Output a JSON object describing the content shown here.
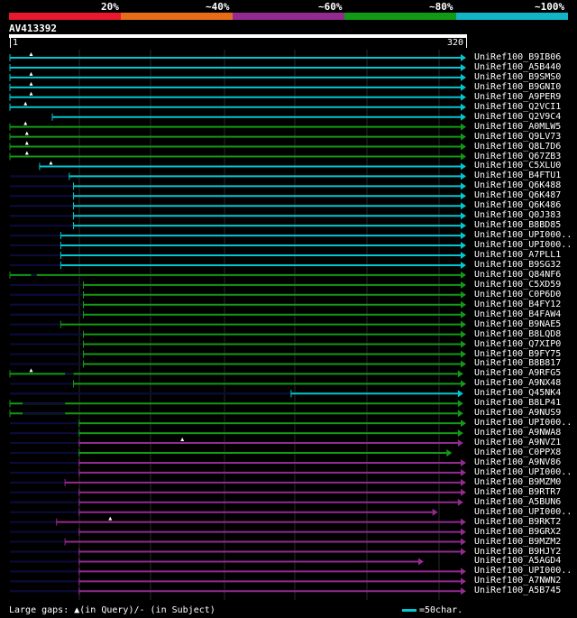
{
  "legend": [
    {
      "label": "20%",
      "color": "#e8192c"
    },
    {
      "label": "~40%",
      "color": "#e66c1a"
    },
    {
      "label": "~60%",
      "color": "#922a8f"
    },
    {
      "label": "~80%",
      "color": "#129a16"
    },
    {
      "label": "~100%",
      "color": "#11b5c6"
    }
  ],
  "query": {
    "name": "AV413392",
    "start": "1",
    "end": "320",
    "length": 320
  },
  "footer": {
    "gaps_text": "Large gaps: ▲(in Query)/- (in Subject)",
    "scale_text": "=50char."
  },
  "colors": {
    "cyan": "#00c8d2",
    "green": "#129a16",
    "purple": "#922a8f",
    "dark": "#0b0b3a",
    "gap_marker": "#ffffff"
  },
  "hits": [
    {
      "name": "UniRef100_B9IB06",
      "color": "cyan",
      "start": 1,
      "end": 320,
      "gap_q": 16
    },
    {
      "name": "UniRef100_A5B440",
      "color": "cyan",
      "start": 1,
      "end": 320
    },
    {
      "name": "UniRef100_B9SMS0",
      "color": "cyan",
      "start": 1,
      "end": 320,
      "gap_q": 16
    },
    {
      "name": "UniRef100_B9GNI0",
      "color": "cyan",
      "start": 1,
      "end": 320,
      "gap_q": 16
    },
    {
      "name": "UniRef100_A9PER9",
      "color": "cyan",
      "start": 1,
      "end": 320,
      "gap_q": 16
    },
    {
      "name": "UniRef100_Q2VCI1",
      "color": "cyan",
      "start": 1,
      "end": 320,
      "gap_q": 12
    },
    {
      "name": "UniRef100_Q2V9C4",
      "color": "cyan",
      "start": 31,
      "end": 320
    },
    {
      "name": "UniRef100_A0MLW5",
      "color": "green",
      "start": 1,
      "end": 320,
      "gap_q": 12
    },
    {
      "name": "UniRef100_Q9LV73",
      "color": "green",
      "start": 1,
      "end": 320,
      "gap_q": 13
    },
    {
      "name": "UniRef100_Q8L7D6",
      "color": "green",
      "start": 1,
      "end": 320,
      "gap_q": 13
    },
    {
      "name": "UniRef100_Q67ZB3",
      "color": "green",
      "start": 1,
      "end": 320,
      "gap_q": 13
    },
    {
      "name": "UniRef100_C5XLU0",
      "color": "cyan",
      "start": 22,
      "end": 320,
      "gap_q": 30
    },
    {
      "name": "UniRef100_B4FTU1",
      "color": "cyan",
      "start": 43,
      "end": 320,
      "dark": [
        1,
        43
      ]
    },
    {
      "name": "UniRef100_Q6K488",
      "color": "cyan",
      "start": 46,
      "end": 320,
      "dark": [
        1,
        46
      ]
    },
    {
      "name": "UniRef100_Q6K487",
      "color": "cyan",
      "start": 46,
      "end": 320,
      "dark": [
        1,
        46
      ]
    },
    {
      "name": "UniRef100_Q6K486",
      "color": "cyan",
      "start": 46,
      "end": 320,
      "dark": [
        1,
        46
      ]
    },
    {
      "name": "UniRef100_Q0J383",
      "color": "cyan",
      "start": 46,
      "end": 320,
      "dark": [
        1,
        46
      ]
    },
    {
      "name": "UniRef100_B8BD85",
      "color": "cyan",
      "start": 46,
      "end": 320,
      "dark": [
        1,
        46
      ]
    },
    {
      "name": "UniRef100_UPI000..",
      "color": "cyan",
      "start": 37,
      "end": 320,
      "dark": [
        1,
        37
      ]
    },
    {
      "name": "UniRef100_UPI000..",
      "color": "cyan",
      "start": 37,
      "end": 320,
      "dark": [
        1,
        37
      ]
    },
    {
      "name": "UniRef100_A7PLL1",
      "color": "cyan",
      "start": 37,
      "end": 320,
      "dark": [
        1,
        37
      ]
    },
    {
      "name": "UniRef100_B9SG32",
      "color": "cyan",
      "start": 37,
      "end": 320,
      "dark": [
        1,
        37
      ]
    },
    {
      "name": "UniRef100_Q84NF6",
      "color": "green",
      "start": 1,
      "end": 320,
      "dark": [
        16,
        20
      ]
    },
    {
      "name": "UniRef100_C5XD59",
      "color": "green",
      "start": 53,
      "end": 320,
      "dark": [
        1,
        53
      ]
    },
    {
      "name": "UniRef100_C0P6D0",
      "color": "green",
      "start": 53,
      "end": 320,
      "dark": [
        1,
        53
      ]
    },
    {
      "name": "UniRef100_B4FY12",
      "color": "green",
      "start": 53,
      "end": 320,
      "dark": [
        1,
        53
      ]
    },
    {
      "name": "UniRef100_B4FAW4",
      "color": "green",
      "start": 53,
      "end": 320,
      "dark": [
        1,
        53
      ]
    },
    {
      "name": "UniRef100_B9NAE5",
      "color": "green",
      "start": 37,
      "end": 320,
      "dark": [
        1,
        37
      ]
    },
    {
      "name": "UniRef100_B8LQD8",
      "color": "green",
      "start": 53,
      "end": 320,
      "dark": [
        1,
        53
      ]
    },
    {
      "name": "UniRef100_Q7XIP0",
      "color": "green",
      "start": 53,
      "end": 320,
      "dark": [
        1,
        53
      ]
    },
    {
      "name": "UniRef100_B9FY75",
      "color": "green",
      "start": 53,
      "end": 320,
      "dark": [
        1,
        53
      ]
    },
    {
      "name": "UniRef100_B8B817",
      "color": "green",
      "start": 53,
      "end": 320,
      "dark": [
        1,
        53
      ]
    },
    {
      "name": "UniRef100_A9RFG5",
      "color": "green",
      "start": 1,
      "end": 318,
      "gap_q": 16,
      "dark": [
        40,
        46
      ]
    },
    {
      "name": "UniRef100_A9NX48",
      "color": "green",
      "start": 46,
      "end": 320,
      "dark": [
        1,
        46
      ]
    },
    {
      "name": "UniRef100_Q45NK4",
      "color": "cyan",
      "start": 200,
      "end": 318,
      "dark": [
        1,
        200
      ]
    },
    {
      "name": "UniRef100_B8LP41",
      "color": "green",
      "start": 1,
      "end": 318,
      "dark": [
        10,
        40
      ]
    },
    {
      "name": "UniRef100_A9NUS9",
      "color": "green",
      "start": 1,
      "end": 318,
      "dark": [
        10,
        40
      ]
    },
    {
      "name": "UniRef100_UPI000..",
      "color": "green",
      "start": 50,
      "end": 320,
      "dark": [
        1,
        50
      ]
    },
    {
      "name": "UniRef100_A9NWA8",
      "color": "green",
      "start": 50,
      "end": 318,
      "dark": [
        1,
        50
      ]
    },
    {
      "name": "UniRef100_A9NVZ1",
      "color": "purple",
      "start": 50,
      "end": 318,
      "gap_q": 123,
      "dark": [
        1,
        50
      ]
    },
    {
      "name": "UniRef100_C0PPX8",
      "color": "green",
      "start": 50,
      "end": 310,
      "dark": [
        1,
        50
      ]
    },
    {
      "name": "UniRef100_A9NV86",
      "color": "purple",
      "start": 50,
      "end": 320,
      "dark": [
        1,
        50
      ]
    },
    {
      "name": "UniRef100_UPI000..",
      "color": "purple",
      "start": 50,
      "end": 320,
      "dark": [
        1,
        50
      ]
    },
    {
      "name": "UniRef100_B9MZM0",
      "color": "purple",
      "start": 40,
      "end": 320,
      "dark": [
        1,
        40
      ]
    },
    {
      "name": "UniRef100_B9RTR7",
      "color": "purple",
      "start": 50,
      "end": 320,
      "dark": [
        1,
        50
      ]
    },
    {
      "name": "UniRef100_A5BUN6",
      "color": "purple",
      "start": 50,
      "end": 318,
      "dark": [
        1,
        50
      ]
    },
    {
      "name": "UniRef100_UPI000..",
      "color": "purple",
      "start": 50,
      "end": 300,
      "dark": [
        1,
        50
      ]
    },
    {
      "name": "UniRef100_B9RKT2",
      "color": "purple",
      "start": 34,
      "end": 320,
      "gap_q": 72,
      "dark": [
        1,
        34
      ]
    },
    {
      "name": "UniRef100_B9GRX2",
      "color": "purple",
      "start": 50,
      "end": 320,
      "dark": [
        1,
        50
      ]
    },
    {
      "name": "UniRef100_B9MZM2",
      "color": "purple",
      "start": 40,
      "end": 320,
      "dark": [
        1,
        40
      ]
    },
    {
      "name": "UniRef100_B9HJY2",
      "color": "purple",
      "start": 50,
      "end": 320,
      "dark": [
        1,
        50
      ]
    },
    {
      "name": "UniRef100_A5AGD4",
      "color": "purple",
      "start": 50,
      "end": 290,
      "dark": [
        1,
        50
      ]
    },
    {
      "name": "UniRef100_UPI000..",
      "color": "purple",
      "start": 50,
      "end": 320,
      "dark": [
        1,
        50
      ]
    },
    {
      "name": "UniRef100_A7NWN2",
      "color": "purple",
      "start": 50,
      "end": 320,
      "dark": [
        1,
        50
      ]
    },
    {
      "name": "UniRef100_A5B745",
      "color": "purple",
      "start": 50,
      "end": 320,
      "dark": [
        1,
        50
      ]
    }
  ]
}
